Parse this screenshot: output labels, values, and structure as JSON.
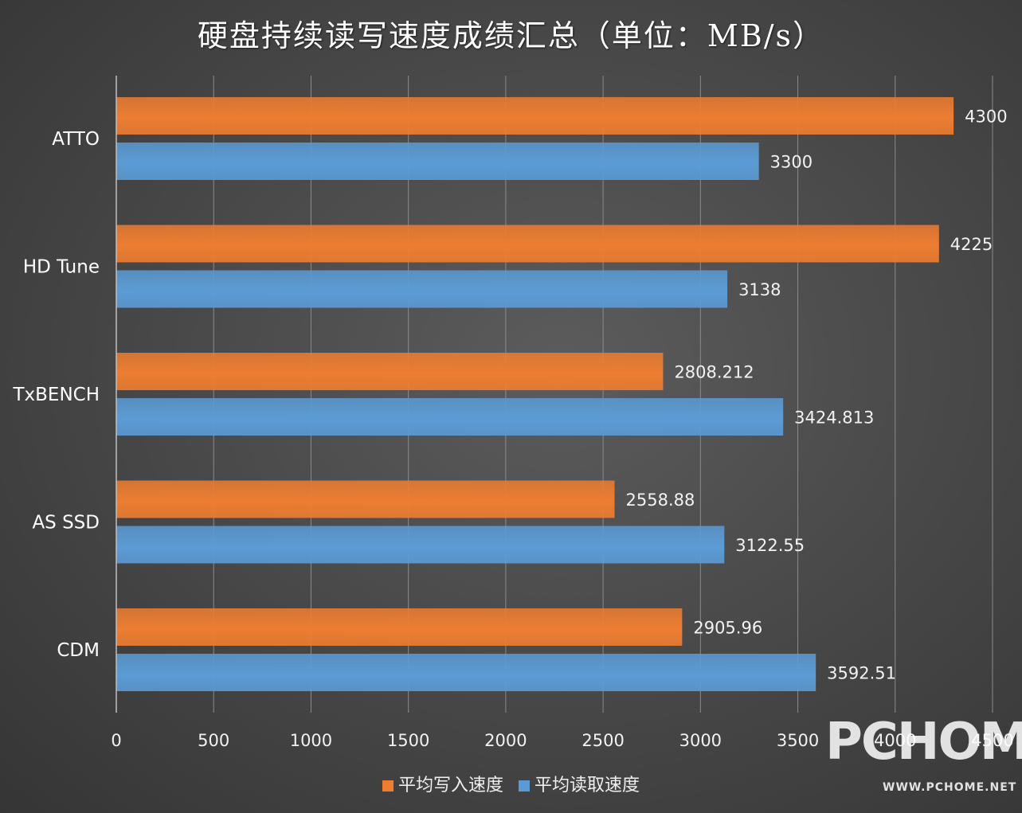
{
  "chart_data": {
    "type": "bar",
    "orientation": "horizontal",
    "title": "硬盘持续读写速度成绩汇总（单位：MB/s）",
    "categories": [
      "ATTO",
      "HD Tune",
      "TxBENCH",
      "AS SSD",
      "CDM"
    ],
    "series": [
      {
        "name": "平均写入速度",
        "color": "#ed7d31",
        "values": [
          4300,
          4225,
          2808.212,
          2558.88,
          2905.96
        ]
      },
      {
        "name": "平均读取速度",
        "color": "#5b9bd5",
        "values": [
          3300,
          3138,
          3424.813,
          3122.55,
          3592.51
        ]
      }
    ],
    "x_ticks": [
      0,
      500,
      1000,
      1500,
      2000,
      2500,
      3000,
      3500,
      4000,
      4500
    ],
    "xlim": [
      0,
      4500
    ],
    "grid": true,
    "legend_position": "bottom"
  },
  "watermark": {
    "text": "PCHOME",
    "url_text": "WWW.PCHOME.NET"
  }
}
